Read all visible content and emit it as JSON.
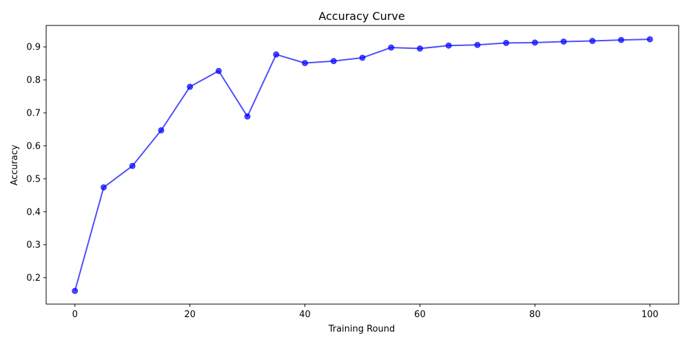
{
  "chart_data": {
    "type": "line",
    "title": "Accuracy Curve",
    "xlabel": "Training Round",
    "ylabel": "Accuracy",
    "xlim": [
      -5,
      105
    ],
    "ylim": [
      0.12,
      0.965
    ],
    "x_ticks": [
      0,
      20,
      40,
      60,
      80,
      100
    ],
    "x_tick_labels": [
      "0",
      "20",
      "40",
      "60",
      "80",
      "100"
    ],
    "y_ticks": [
      0.2,
      0.3,
      0.4,
      0.5,
      0.6,
      0.7,
      0.8,
      0.9
    ],
    "y_tick_labels": [
      "0.2",
      "0.3",
      "0.4",
      "0.5",
      "0.6",
      "0.7",
      "0.8",
      "0.9"
    ],
    "grid": false,
    "line_color": "#0000ff",
    "marker": "circle",
    "series": [
      {
        "x": [
          0,
          5,
          10,
          15,
          20,
          25,
          30,
          35,
          40,
          45,
          50,
          55,
          60,
          65,
          70,
          75,
          80,
          85,
          90,
          95,
          100
        ],
        "values": [
          0.16,
          0.474,
          0.539,
          0.647,
          0.779,
          0.827,
          0.689,
          0.877,
          0.851,
          0.857,
          0.867,
          0.898,
          0.895,
          0.904,
          0.906,
          0.912,
          0.913,
          0.916,
          0.918,
          0.921,
          0.923
        ]
      }
    ]
  }
}
